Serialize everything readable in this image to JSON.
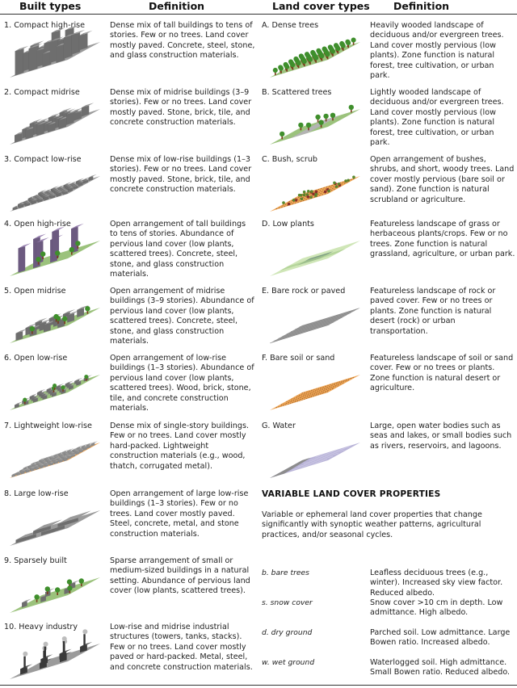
{
  "headers": {
    "built_types": "Built types",
    "definition_left": "Definition",
    "land_cover_types": "Land cover types",
    "definition_right": "Definition"
  },
  "built": [
    {
      "label": "1. Compact high-rise",
      "definition": "Dense mix of tall buildings to tens of stories. Few or no trees. Land cover mostly paved. Concrete, steel, stone, and glass construction materials."
    },
    {
      "label": "2. Compact midrise",
      "definition": "Dense mix of midrise buildings (3–9 stories). Few or no trees. Land cover mostly paved. Stone, brick, tile, and concrete construction materials."
    },
    {
      "label": "3. Compact low-rise",
      "definition": "Dense mix of low-rise buildings (1–3 stories). Few or no trees. Land cover mostly paved. Stone, brick, tile, and concrete construction materials."
    },
    {
      "label": "4. Open high-rise",
      "definition": "Open arrangement of tall buildings to tens of stories. Abundance of pervious land cover (low plants, scattered trees). Concrete, steel, stone, and glass construction materials."
    },
    {
      "label": "5. Open midrise",
      "definition": "Open arrangement of midrise buildings (3–9 stories). Abundance of pervious land cover (low plants, scattered trees). Concrete, steel, stone, and glass construction materials."
    },
    {
      "label": "6. Open low-rise",
      "definition": "Open arrangement of low-rise buildings (1–3 stories). Abundance of pervious land cover (low plants, scattered trees). Wood, brick, stone, tile, and concrete construction materials."
    },
    {
      "label": "7. Lightweight low-rise",
      "definition": "Dense mix of single-story buildings. Few or no trees. Land cover mostly hard-packed. Lightweight construction materials (e.g., wood, thatch, corrugated metal)."
    },
    {
      "label": "8. Large low-rise",
      "definition": "Open arrangement of large low-rise buildings (1–3 stories). Few or no trees. Land cover mostly paved. Steel, concrete, metal, and stone construction materials."
    },
    {
      "label": "9. Sparsely built",
      "definition": "Sparse arrangement of small or medium-sized buildings in a natural setting. Abundance of pervious land cover (low plants, scattered trees)."
    },
    {
      "label": "10. Heavy industry",
      "definition": "Low-rise and midrise industrial structures (towers, tanks, stacks). Few or no trees. Land cover mostly paved or hard-packed. Metal, steel, and concrete construction materials."
    }
  ],
  "landcover": [
    {
      "label": "A. Dense trees",
      "definition": "Heavily wooded landscape of deciduous and/or evergreen trees. Land cover mostly pervious (low plants). Zone function is natural forest, tree cultivation, or urban park."
    },
    {
      "label": "B. Scattered trees",
      "definition": "Lightly wooded landscape of deciduous and/or evergreen trees. Land cover mostly pervious (low plants). Zone function is natural forest, tree cultivation, or urban park."
    },
    {
      "label": "C. Bush, scrub",
      "definition": "Open arrangement of bushes, shrubs, and short, woody trees. Land cover mostly pervious (bare soil or sand). Zone function is natural scrubland or agriculture."
    },
    {
      "label": "D. Low plants",
      "definition": "Featureless landscape of grass or herbaceous plants/crops. Few or no trees. Zone function is natural grassland, agriculture, or urban park."
    },
    {
      "label": "E. Bare rock or paved",
      "definition": "Featureless landscape of rock or paved cover. Few or no trees or plants. Zone function is natural desert (rock) or urban transportation."
    },
    {
      "label": "F. Bare soil or sand",
      "definition": "Featureless landscape of soil or sand cover. Few or no trees or plants. Zone function is natural desert or agriculture."
    },
    {
      "label": "G. Water",
      "definition": "Large, open water bodies such as seas and lakes, or small bodies such as rivers, reservoirs, and lagoons."
    }
  ],
  "variable": {
    "title": "VARIABLE LAND COVER PROPERTIES",
    "intro": "Variable or ephemeral land cover properties that change significantly with synoptic weather patterns, agricultural practices, and/or seasonal cycles.",
    "items": [
      {
        "label": "b. bare trees",
        "definition": "Leafless deciduous trees (e.g., winter). Increased sky view factor. Reduced albedo."
      },
      {
        "label": "s. snow cover",
        "definition": "Snow cover >10 cm in depth. Low admittance. High albedo."
      },
      {
        "label": "d. dry ground",
        "definition": "Parched soil. Low admittance. Large Bowen ratio. Increased albedo."
      },
      {
        "label": "w. wet ground",
        "definition": "Waterlogged soil. High admittance. Small Bowen ratio. Reduced albedo."
      }
    ]
  },
  "colors": {
    "building_top": "#9a9a9a",
    "building_left": "#4a4a4a",
    "building_right": "#6e6e6e",
    "purple_top": "#9b84b3",
    "purple_left": "#4c3d5c",
    "purple_right": "#6c5a80",
    "grass": "#9bc27c",
    "pavement": "#9b9b9b",
    "tree": "#3f8f2c",
    "trunk": "#7a3b1c",
    "soil": "#efa656",
    "water": "#b9b4d8"
  }
}
